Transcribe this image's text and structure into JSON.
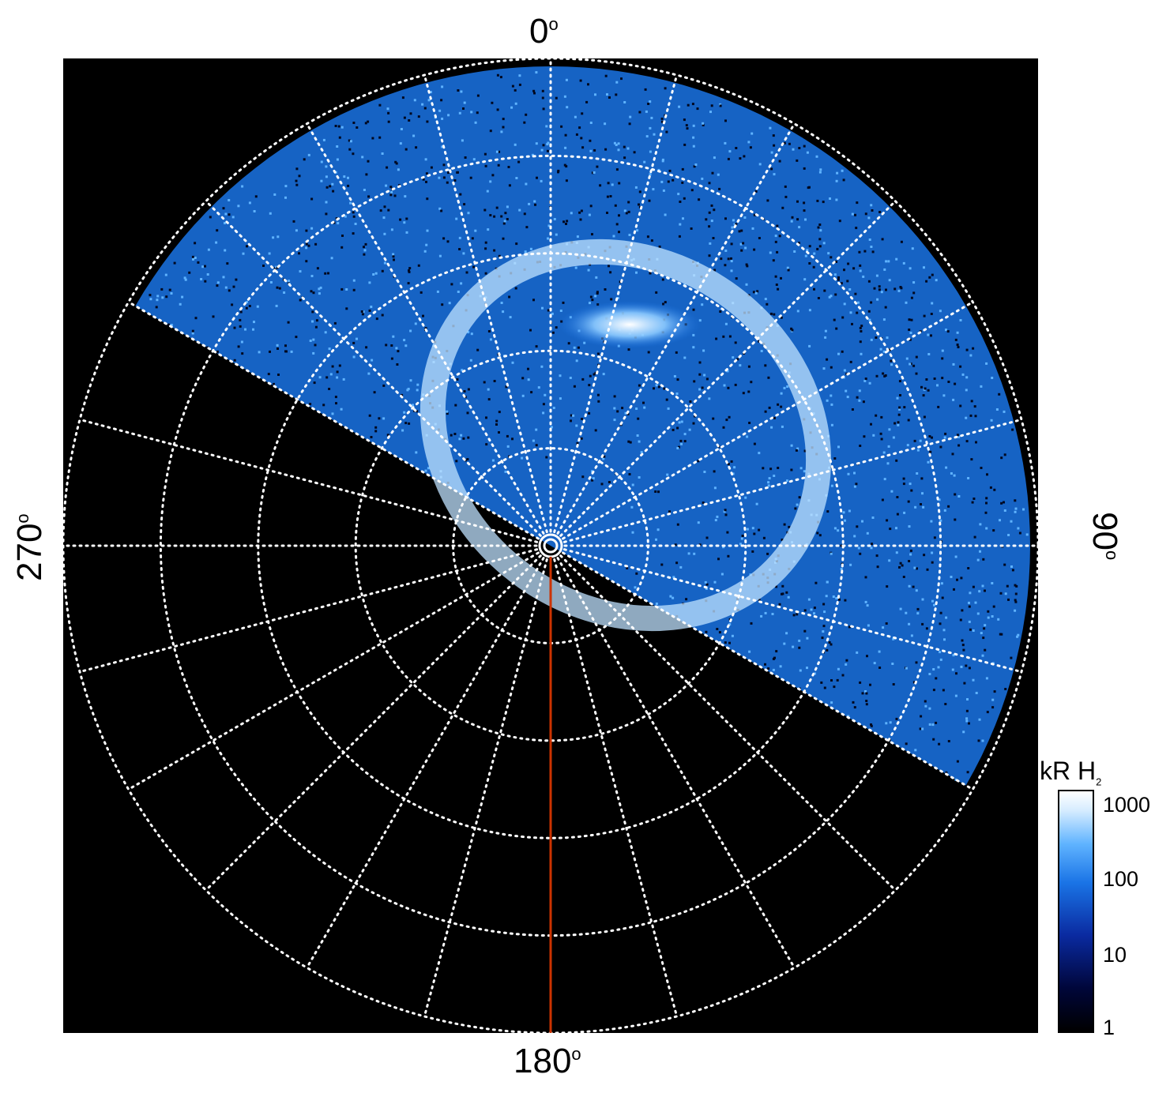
{
  "chart_data": {
    "type": "polar-heatmap",
    "projection": "polar",
    "angle_labels": {
      "top": "0",
      "right": "90",
      "bottom": "180",
      "left": "270",
      "unit": "o"
    },
    "grid": true,
    "radial_spokes_count": 24,
    "concentric_rings_count": 5,
    "colorbar": {
      "title": "kR H",
      "title_subscript": "2",
      "scale": "log",
      "range": [
        1,
        1000
      ],
      "tick_labels": [
        "1",
        "10",
        "100",
        "1000"
      ],
      "colormap": [
        "#000000",
        "#00063a",
        "#0a2aa0",
        "#1a74e6",
        "#5fb3ff",
        "#d6ecff",
        "#ffffff"
      ]
    },
    "coverage_sector_deg": [
      -60,
      120
    ],
    "reference_line_angle_deg": 180,
    "reference_line_color": "#cc3300",
    "emission_ring": "bright oval along 0°–120° reaching ~1000 kR near 20°–40°"
  }
}
